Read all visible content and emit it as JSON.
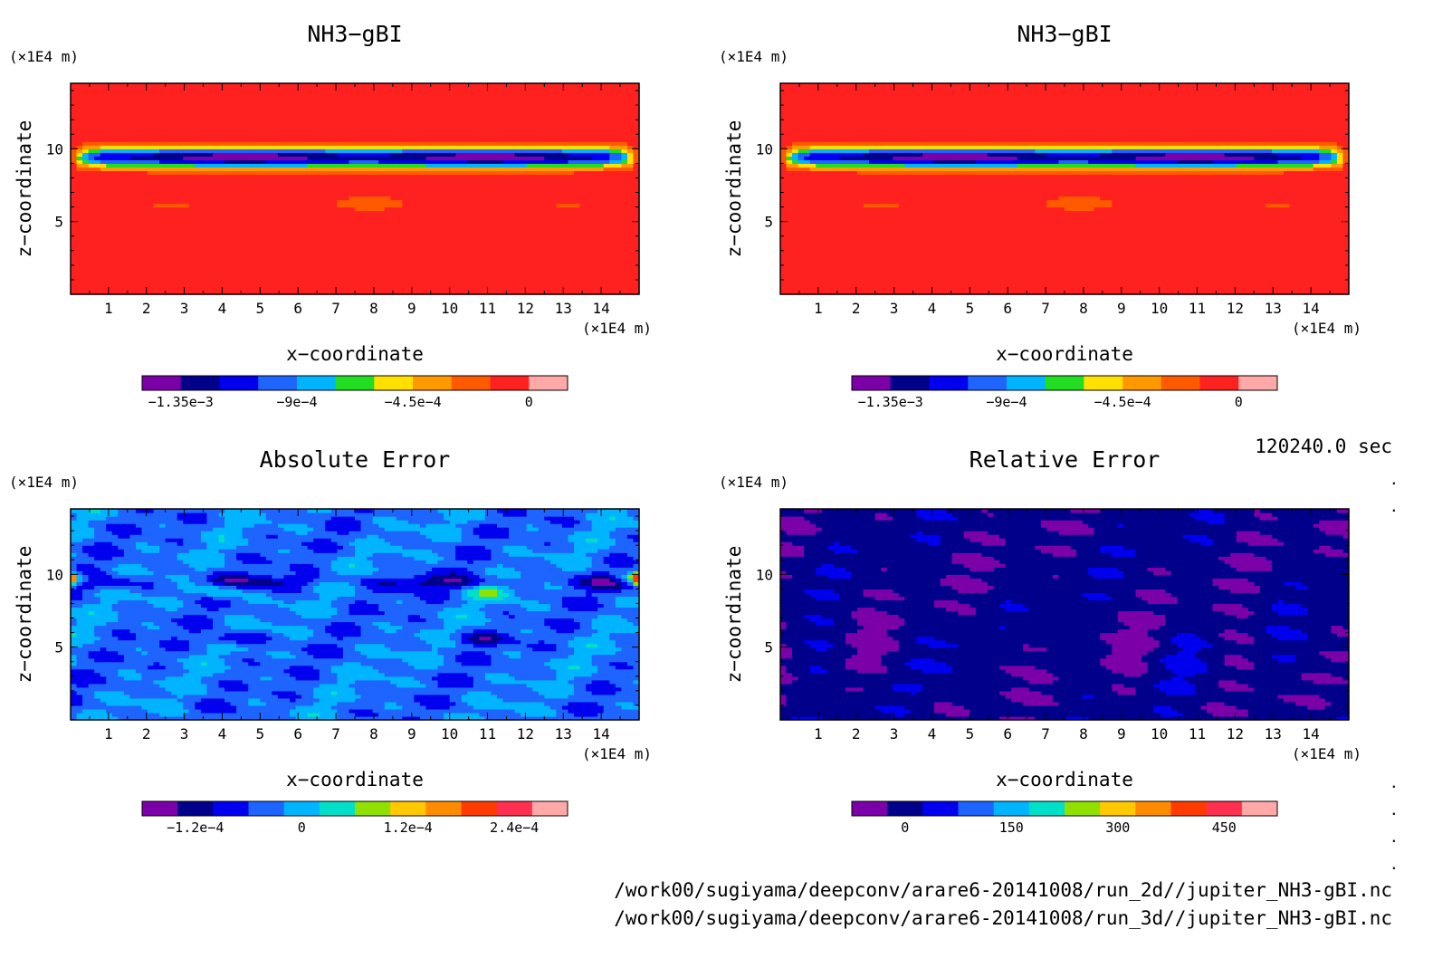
{
  "panels": [
    {
      "title": "NH3−gBI",
      "x_unit": "(×1E4 m)",
      "z_unit": "(×1E4 m)",
      "xlabel": "x−coordinate",
      "ylabel": "z−coordinate",
      "field": "nh3",
      "colorbar": {
        "colors": [
          "#7b00a8",
          "#00008b",
          "#0000ee",
          "#1e64ff",
          "#00b4ff",
          "#22dd22",
          "#ffe000",
          "#ff9900",
          "#ff5a00",
          "#ff2020",
          "#ffa8a8"
        ],
        "labels": [
          "−1.35e−3",
          "−9e−4",
          "−4.5e−4",
          "0"
        ],
        "label_index": [
          0.5,
          3.5,
          6.5,
          9.5
        ]
      }
    },
    {
      "title": "NH3−gBI",
      "x_unit": "(×1E4 m)",
      "z_unit": "(×1E4 m)",
      "xlabel": "x−coordinate",
      "ylabel": "z−coordinate",
      "field": "nh3",
      "colorbar": {
        "colors": [
          "#7b00a8",
          "#00008b",
          "#0000ee",
          "#1e64ff",
          "#00b4ff",
          "#22dd22",
          "#ffe000",
          "#ff9900",
          "#ff5a00",
          "#ff2020",
          "#ffa8a8"
        ],
        "labels": [
          "−1.35e−3",
          "−9e−4",
          "−4.5e−4",
          "0"
        ],
        "label_index": [
          0.5,
          3.5,
          6.5,
          9.5
        ]
      }
    },
    {
      "title": "Absolute Error",
      "x_unit": "(×1E4 m)",
      "z_unit": "(×1E4 m)",
      "xlabel": "x−coordinate",
      "ylabel": "z−coordinate",
      "field": "abs",
      "colorbar": {
        "colors": [
          "#7b00a8",
          "#00008b",
          "#0000ee",
          "#1e64ff",
          "#00b4ff",
          "#00e0c8",
          "#90e000",
          "#ffc800",
          "#ff8c00",
          "#ff3c00",
          "#ff3050",
          "#ffa8a8"
        ],
        "labels": [
          "−1.2e−4",
          "0",
          "1.2e−4",
          "2.4e−4"
        ],
        "label_index": [
          1,
          4,
          7,
          10
        ]
      }
    },
    {
      "title": "Relative Error",
      "x_unit": "(×1E4 m)",
      "z_unit": "(×1E4 m)",
      "xlabel": "x−coordinate",
      "ylabel": "z−coordinate",
      "field": "rel",
      "colorbar": {
        "colors": [
          "#7b00a8",
          "#00008b",
          "#0000ee",
          "#1e64ff",
          "#00b4ff",
          "#00e0c8",
          "#90e000",
          "#ffc800",
          "#ff8c00",
          "#ff3c00",
          "#ff3050",
          "#ffa8a8"
        ],
        "labels": [
          "0",
          "150",
          "300",
          "450"
        ],
        "label_index": [
          1,
          4,
          7,
          10
        ]
      }
    }
  ],
  "time_label": "120240.0 sec",
  "file_paths": [
    "/work00/sugiyama/deepconv/arare6-20141008/run_2d//jupiter_NH3-gBI.nc",
    "/work00/sugiyama/deepconv/arare6-20141008/run_3d//jupiter_NH3-gBI.nc"
  ],
  "chart_data": [
    {
      "type": "heatmap",
      "title": "NH3−gBI",
      "xlabel": "x−coordinate",
      "ylabel": "z−coordinate",
      "x_ticks": [
        1,
        2,
        3,
        4,
        5,
        6,
        7,
        8,
        9,
        10,
        11,
        12,
        13,
        14
      ],
      "y_ticks": [
        5,
        10
      ],
      "xlim": [
        0,
        15
      ],
      "ylim": [
        0,
        14.5
      ],
      "colorbar_range": [
        -0.0015,
        0.00015
      ]
    },
    {
      "type": "heatmap",
      "title": "NH3−gBI",
      "xlabel": "x−coordinate",
      "ylabel": "z−coordinate",
      "x_ticks": [
        1,
        2,
        3,
        4,
        5,
        6,
        7,
        8,
        9,
        10,
        11,
        12,
        13,
        14
      ],
      "y_ticks": [
        5,
        10
      ],
      "xlim": [
        0,
        15
      ],
      "ylim": [
        0,
        14.5
      ],
      "colorbar_range": [
        -0.0015,
        0.00015
      ]
    },
    {
      "type": "heatmap",
      "title": "Absolute Error",
      "xlabel": "x−coordinate",
      "ylabel": "z−coordinate",
      "x_ticks": [
        1,
        2,
        3,
        4,
        5,
        6,
        7,
        8,
        9,
        10,
        11,
        12,
        13,
        14
      ],
      "y_ticks": [
        5,
        10
      ],
      "xlim": [
        0,
        15
      ],
      "ylim": [
        0,
        14.5
      ],
      "colorbar_range": [
        -0.00016,
        0.0003
      ]
    },
    {
      "type": "heatmap",
      "title": "Relative Error",
      "xlabel": "x−coordinate",
      "ylabel": "z−coordinate",
      "x_ticks": [
        1,
        2,
        3,
        4,
        5,
        6,
        7,
        8,
        9,
        10,
        11,
        12,
        13,
        14
      ],
      "y_ticks": [
        5,
        10
      ],
      "xlim": [
        0,
        15
      ],
      "ylim": [
        0,
        14.5
      ],
      "colorbar_range": [
        -50,
        550
      ]
    }
  ]
}
